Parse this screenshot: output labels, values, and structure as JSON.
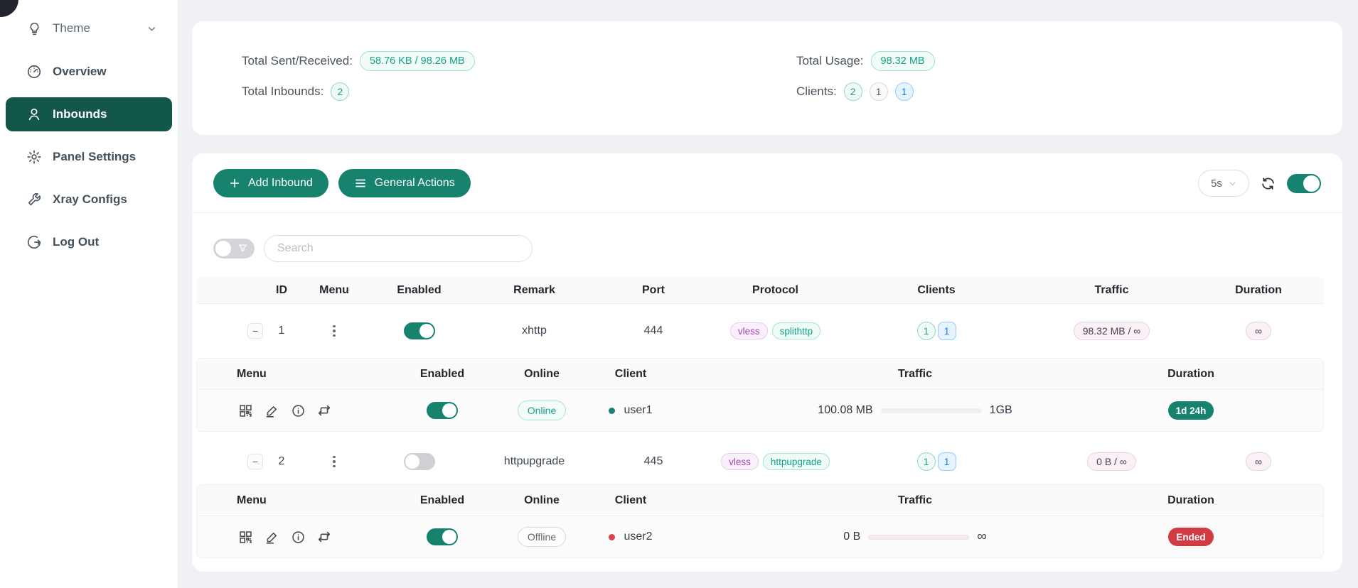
{
  "colors": {
    "primary": "#17836f",
    "sidebar-active-bg": "#13564a",
    "danger": "#d23b41",
    "tag-purple": "#a248b2",
    "tag-teal": "#17a184",
    "badge-blue": "#1677ff",
    "page-bg": "#eff1f5"
  },
  "icons": {
    "theme": "lightbulb-icon",
    "overview": "dashboard-icon",
    "inbounds": "user-icon",
    "panel_settings": "gear-icon",
    "xray_configs": "wrench-icon",
    "log_out": "logout-icon",
    "add": "plus-icon",
    "general_actions": "hamburger-icon",
    "refresh": "sync-icon",
    "filter": "funnel-icon",
    "row_menu": "vertical-dots-icon",
    "client_actions": [
      "qrcode-icon",
      "edit-pencil-icon",
      "info-circle-icon",
      "reset-traffic-icon"
    ],
    "collapse": "minus-icon",
    "dropdown": "chevron-down-icon"
  },
  "sidebar": {
    "theme": {
      "label": "Theme"
    },
    "items": [
      {
        "label": "Overview",
        "active": false
      },
      {
        "label": "Inbounds",
        "active": true
      },
      {
        "label": "Panel Settings",
        "active": false
      },
      {
        "label": "Xray Configs",
        "active": false
      },
      {
        "label": "Log Out",
        "active": false
      }
    ]
  },
  "stats": {
    "total_sent_received_label": "Total Sent/Received:",
    "total_sent_received_value": "58.76 KB / 98.26 MB",
    "total_inbounds_label": "Total Inbounds:",
    "total_inbounds_value": "2",
    "total_usage_label": "Total Usage:",
    "total_usage_value": "98.32 MB",
    "clients_label": "Clients:",
    "clients_badges": [
      {
        "value": "2",
        "variant": "green"
      },
      {
        "value": "1",
        "variant": "gray"
      },
      {
        "value": "1",
        "variant": "blue"
      }
    ]
  },
  "toolbar": {
    "add_inbound_label": "Add Inbound",
    "general_actions_label": "General Actions",
    "refresh_interval": "5s",
    "auto_refresh_on": true
  },
  "search": {
    "placeholder": "Search"
  },
  "table": {
    "headers": [
      "ID",
      "Menu",
      "Enabled",
      "Remark",
      "Port",
      "Protocol",
      "Clients",
      "Traffic",
      "Duration"
    ],
    "sub_headers": [
      "Menu",
      "Enabled",
      "Online",
      "Client",
      "Traffic",
      "Duration"
    ],
    "inbounds": [
      {
        "id": "1",
        "enabled": true,
        "remark": "xhttp",
        "port": "444",
        "protocol_tags": [
          {
            "label": "vless",
            "variant": "purple"
          },
          {
            "label": "splithttp",
            "variant": "teal"
          }
        ],
        "client_counts": [
          {
            "value": "1",
            "variant": "green"
          },
          {
            "value": "1",
            "variant": "blue"
          }
        ],
        "traffic": "98.32 MB / ∞",
        "duration": "∞",
        "clients": [
          {
            "enabled": true,
            "online_label": "Online",
            "online": true,
            "name": "user1",
            "traffic_used": "100.08 MB",
            "traffic_total": "1GB",
            "progress_pct": 10,
            "duration": "1d 24h",
            "duration_variant": "teal"
          }
        ]
      },
      {
        "id": "2",
        "enabled": false,
        "remark": "httpupgrade",
        "port": "445",
        "protocol_tags": [
          {
            "label": "vless",
            "variant": "purple"
          },
          {
            "label": "httpupgrade",
            "variant": "teal"
          }
        ],
        "client_counts": [
          {
            "value": "1",
            "variant": "green"
          },
          {
            "value": "1",
            "variant": "blue"
          }
        ],
        "traffic": "0 B / ∞",
        "duration": "∞",
        "clients": [
          {
            "enabled": true,
            "online_label": "Offline",
            "online": false,
            "name": "user2",
            "traffic_used": "0 B",
            "traffic_total": "∞",
            "progress_pct": 0,
            "duration": "Ended",
            "duration_variant": "red"
          }
        ]
      }
    ]
  }
}
